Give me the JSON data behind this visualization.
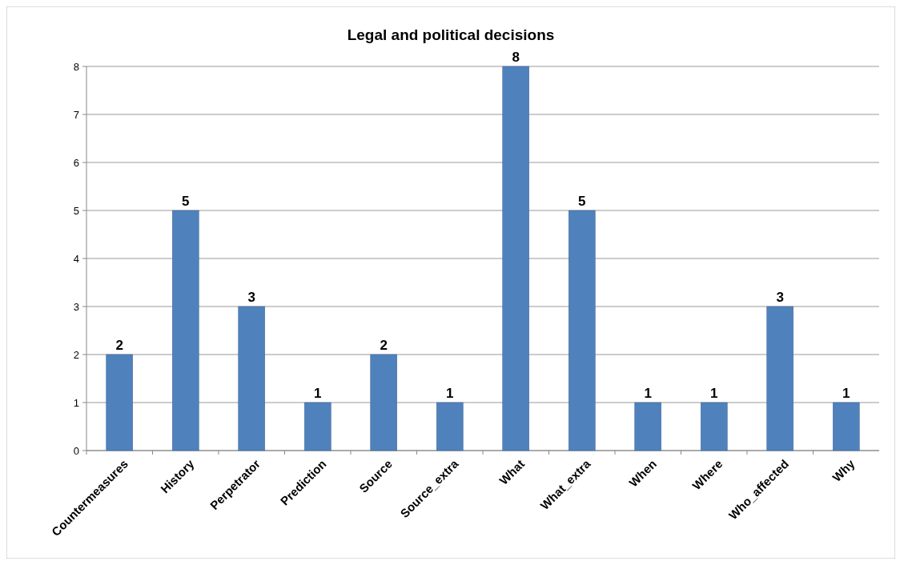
{
  "chart_data": {
    "type": "bar",
    "title": "Legal and political decisions",
    "categories": [
      "Countermeasures",
      "History",
      "Perpetrator",
      "Prediction",
      "Source",
      "Source_extra",
      "What",
      "What_extra",
      "When",
      "Where",
      "Who_affected",
      "Why"
    ],
    "values": [
      2,
      5,
      3,
      1,
      2,
      1,
      8,
      5,
      1,
      1,
      3,
      1
    ],
    "color": "#4f81bd",
    "ylim": [
      0,
      8
    ],
    "yticks": [
      0,
      1,
      2,
      3,
      4,
      5,
      6,
      7,
      8
    ],
    "grid": "y",
    "data_labels": true
  }
}
